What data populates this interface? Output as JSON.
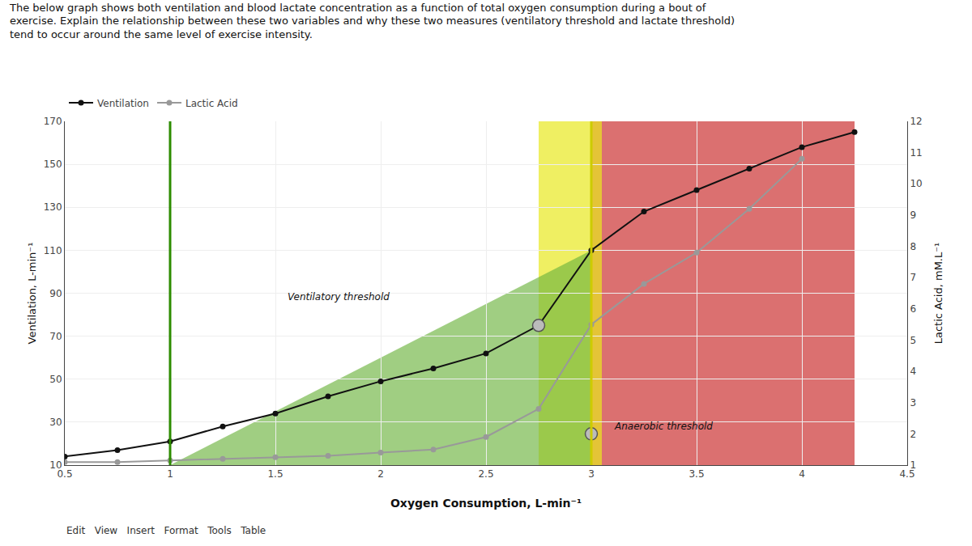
{
  "chart_data": {
    "type": "line",
    "title": "The below graph shows both ventilation and blood lactate concentration as a function of total oxygen consumption during a bout of\nexercise. Explain the relationship between these two variables and why these two measures (ventilatory threshold and lactate threshold)\ntend to occur around the same level of exercise intensity.",
    "x_label": "Oxygen Consumption, L-min⁻¹",
    "y_label": "Ventilation, L-min⁻¹",
    "y2_label": "Lactic Acid, mM.L⁻¹",
    "series": [
      {
        "name": "Ventilation",
        "color": "#111111",
        "marker": "circle",
        "x": [
          0.5,
          0.75,
          1.0,
          1.25,
          1.5,
          1.75,
          2.0,
          2.25,
          2.5,
          2.75,
          3.0,
          3.25,
          3.5,
          3.75,
          4.0,
          4.25
        ],
        "values": [
          14,
          17,
          21,
          28,
          34,
          42,
          49,
          55,
          62,
          75,
          110,
          128,
          138,
          148,
          158,
          165
        ]
      },
      {
        "name": "Lactic Acid",
        "color": "#999999",
        "marker": "circle",
        "axis": "y2",
        "x": [
          0.5,
          0.75,
          1.0,
          1.25,
          1.5,
          1.75,
          2.0,
          2.25,
          2.5,
          2.75,
          3.0,
          3.25,
          3.5,
          3.75,
          4.0
        ],
        "values": [
          1.1,
          1.1,
          1.15,
          1.2,
          1.25,
          1.3,
          1.4,
          1.5,
          1.9,
          2.8,
          5.5,
          6.8,
          7.8,
          9.2,
          10.8
        ]
      }
    ],
    "xlim": [
      0.5,
      4.5
    ],
    "ylim": [
      10,
      170
    ],
    "y2lim": [
      1,
      12
    ],
    "xticks": [
      0.5,
      1.0,
      1.5,
      2.0,
      2.5,
      3.0,
      3.5,
      4.0,
      4.5
    ],
    "yticks": [
      10,
      30,
      50,
      70,
      90,
      110,
      130,
      150,
      170
    ],
    "y2ticks": [
      1,
      2,
      3,
      4,
      5,
      6,
      7,
      8,
      9,
      10,
      11,
      12
    ],
    "grid": true,
    "legend": "upper left",
    "highlights": [
      {
        "x": 2.75,
        "y": 75,
        "color": "#bbbbbb"
      },
      {
        "x": 3.0,
        "y": 2.0,
        "axis": "y2",
        "color": "#bbbbbb"
      }
    ],
    "annotations": [
      {
        "text": "Ventilatory threshold",
        "x": 1.55,
        "y": 85
      },
      {
        "text": "Anaerobic threshold",
        "x": 3.1,
        "y": 2.0,
        "axis": "y2"
      }
    ],
    "regions": [
      {
        "x": [
          1.0,
          3.0,
          3.0,
          1.0
        ],
        "y": [
          10,
          10,
          110,
          10
        ],
        "color": "#6db33f"
      },
      {
        "x0": 3.0,
        "x1": 4.25,
        "color": "#cc3333"
      },
      {
        "x0": 2.75,
        "x1": 3.05,
        "color": "#e8e820"
      }
    ],
    "vlines": [
      {
        "x": 1.0,
        "color": "#2d8c00"
      },
      {
        "x": 3.0,
        "color": "#cccc00"
      }
    ],
    "footer": "Edit   View   Insert   Format   Tools   Table"
  }
}
